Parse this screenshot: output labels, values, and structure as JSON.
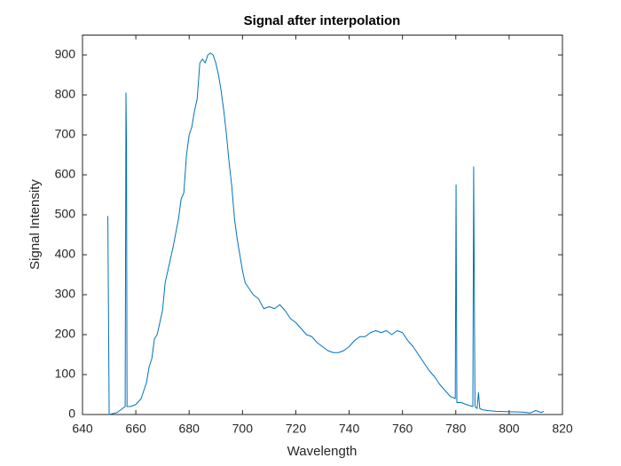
{
  "chart_data": {
    "type": "line",
    "title": "Signal after interpolation",
    "x_label": "Wavelength",
    "y_label": "Signal Intensity",
    "xlim": [
      640,
      820
    ],
    "ylim": [
      0,
      950
    ],
    "xticks": [
      640,
      660,
      680,
      700,
      720,
      740,
      760,
      780,
      800,
      820
    ],
    "yticks": [
      0,
      100,
      200,
      300,
      400,
      500,
      600,
      700,
      800,
      900
    ],
    "grid": false,
    "series": [
      {
        "color": "#0072bd",
        "x": [
          649.5,
          650,
          653,
          655,
          656,
          656.3,
          656.5,
          656.7,
          658,
          660,
          662,
          664,
          665,
          666,
          667,
          668,
          670,
          671,
          672,
          674,
          676,
          677,
          678,
          679,
          680,
          681,
          682,
          683,
          684,
          685,
          686,
          687,
          688,
          689,
          690,
          691,
          692,
          693,
          694,
          695,
          696,
          697,
          698,
          699,
          700,
          701,
          702,
          703,
          704,
          706,
          708,
          710,
          712,
          714,
          716,
          718,
          720,
          722,
          724,
          726,
          728,
          730,
          732,
          734,
          736,
          738,
          740,
          742,
          744,
          746,
          748,
          750,
          752,
          754,
          756,
          758,
          760,
          762,
          764,
          766,
          768,
          770,
          772,
          774,
          776,
          778,
          779.8,
          780.1,
          780.4,
          782,
          784,
          786.4,
          786.7,
          787.2,
          788,
          788.5,
          789,
          790,
          792,
          795,
          800,
          805,
          808,
          810,
          812,
          813
        ],
        "values": [
          497,
          0,
          5,
          15,
          20,
          805,
          680,
          20,
          20,
          25,
          40,
          80,
          120,
          140,
          190,
          200,
          260,
          330,
          360,
          420,
          490,
          540,
          555,
          650,
          700,
          720,
          760,
          790,
          880,
          890,
          880,
          900,
          905,
          900,
          880,
          850,
          810,
          760,
          700,
          630,
          570,
          490,
          440,
          400,
          360,
          330,
          320,
          310,
          300,
          290,
          265,
          270,
          265,
          275,
          260,
          240,
          230,
          215,
          200,
          195,
          180,
          170,
          160,
          155,
          155,
          160,
          170,
          185,
          195,
          195,
          205,
          210,
          205,
          210,
          200,
          210,
          205,
          185,
          170,
          150,
          130,
          110,
          95,
          75,
          60,
          45,
          40,
          575,
          30,
          30,
          25,
          20,
          620,
          20,
          15,
          55,
          15,
          12,
          10,
          8,
          7,
          6,
          4,
          10,
          5,
          8
        ]
      }
    ]
  }
}
